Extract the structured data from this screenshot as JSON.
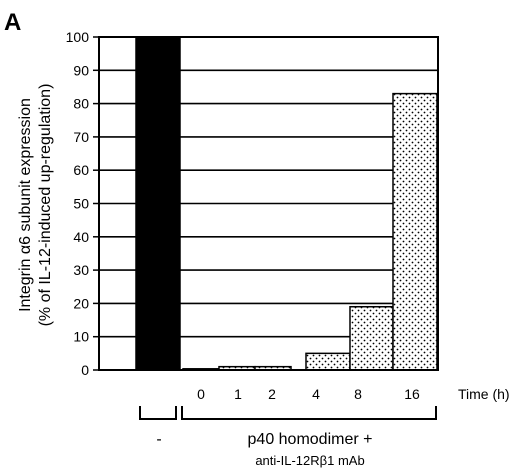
{
  "panel_label": "A",
  "chart_data": {
    "type": "bar",
    "ylabel_line1": "Integrin α6 subunit expression",
    "ylabel_line2": "(% of IL-12-induced up-regulation)",
    "xlabel": "Time (h)",
    "ylim": [
      0,
      100
    ],
    "yticks": [
      0,
      10,
      20,
      30,
      40,
      50,
      60,
      70,
      80,
      90,
      100
    ],
    "grid": true,
    "categories": [
      "",
      "0",
      "1",
      "2",
      "4",
      "8",
      "16"
    ],
    "values": [
      100,
      0.3,
      1,
      1,
      5,
      19,
      83
    ],
    "fills": [
      "solid",
      "dotted",
      "dotted",
      "dotted",
      "dotted",
      "dotted",
      "dotted"
    ],
    "groups": [
      {
        "label": "-",
        "sublabel": ""
      },
      {
        "label": "p40 homodimer +",
        "sublabel": "anti-IL-12Rβ1 mAb"
      }
    ],
    "colors": {
      "solid": "#000000",
      "dotted_fg": "#000000",
      "background": "#ffffff"
    }
  }
}
